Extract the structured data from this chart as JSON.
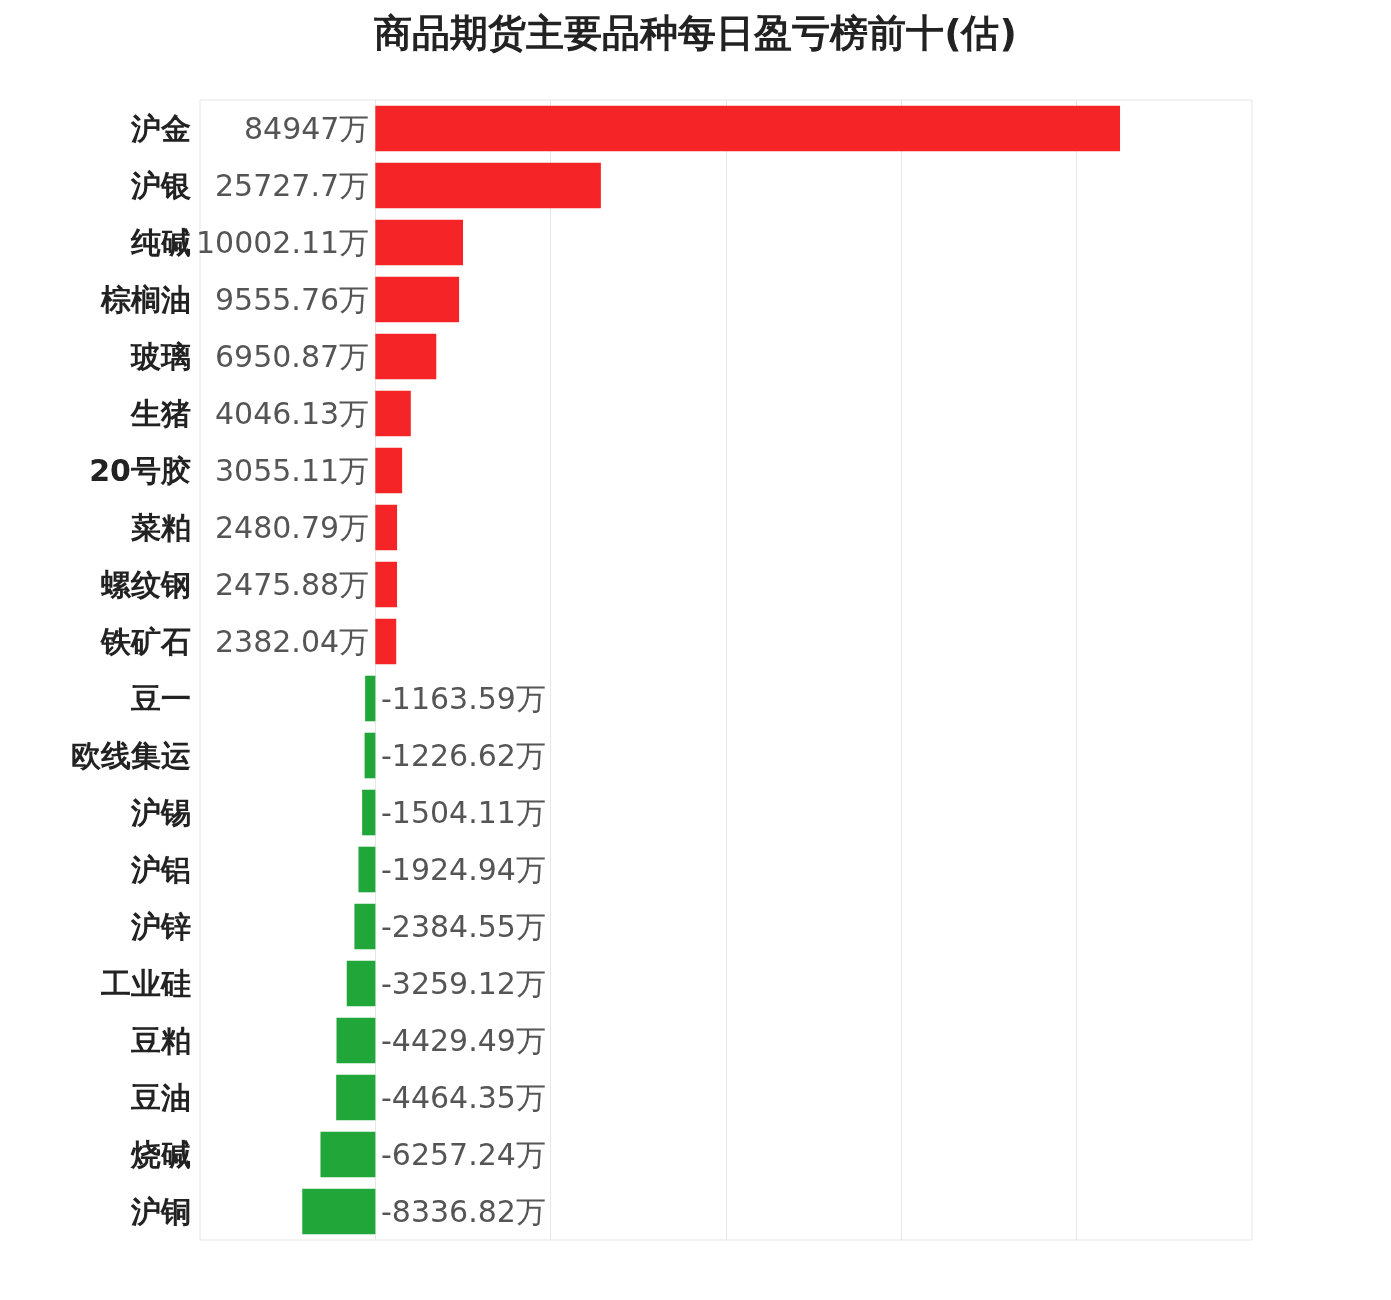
{
  "chart_data": {
    "type": "bar",
    "orientation": "horizontal",
    "title": "商品期货主要品种每日盈亏榜前十(估)",
    "categories": [
      "沪金",
      "沪银",
      "纯碱",
      "棕榈油",
      "玻璃",
      "生猪",
      "20号胶",
      "菜粕",
      "螺纹钢",
      "铁矿石",
      "豆一",
      "欧线集运",
      "沪锡",
      "沪铝",
      "沪锌",
      "工业硅",
      "豆粕",
      "豆油",
      "烧碱",
      "沪铜"
    ],
    "values": [
      84947,
      25727.7,
      10002.11,
      9555.76,
      6950.87,
      4046.13,
      3055.11,
      2480.79,
      2475.88,
      2382.04,
      -1163.59,
      -1226.62,
      -1504.11,
      -1924.94,
      -2384.55,
      -3259.12,
      -4429.49,
      -4464.35,
      -6257.24,
      -8336.82
    ],
    "value_labels": [
      "84947万",
      "25727.7万",
      "10002.11万",
      "9555.76万",
      "6950.87万",
      "4046.13万",
      "3055.11万",
      "2480.79万",
      "2475.88万",
      "2382.04万",
      "-1163.59万",
      "-1226.62万",
      "-1504.11万",
      "-1924.94万",
      "-2384.55万",
      "-3259.12万",
      "-4429.49万",
      "-4464.35万",
      "-6257.24万",
      "-8336.82万"
    ],
    "colors": [
      "#f52427",
      "#f52427",
      "#f52427",
      "#f52427",
      "#f52427",
      "#f52427",
      "#f52427",
      "#f52427",
      "#f52427",
      "#f52427",
      "#21a63a",
      "#21a63a",
      "#21a63a",
      "#21a63a",
      "#21a63a",
      "#21a63a",
      "#21a63a",
      "#21a63a",
      "#21a63a",
      "#21a63a"
    ],
    "xlim": [
      -20000,
      100000
    ],
    "xticks": [
      {
        "value": 0,
        "label": null
      },
      {
        "value": 20000,
        "label": null
      },
      {
        "value": 40000,
        "label": null
      },
      {
        "value": 60000,
        "label": null
      },
      {
        "value": 80000,
        "label": null
      }
    ],
    "tick_labels": "y",
    "grid": "x"
  }
}
